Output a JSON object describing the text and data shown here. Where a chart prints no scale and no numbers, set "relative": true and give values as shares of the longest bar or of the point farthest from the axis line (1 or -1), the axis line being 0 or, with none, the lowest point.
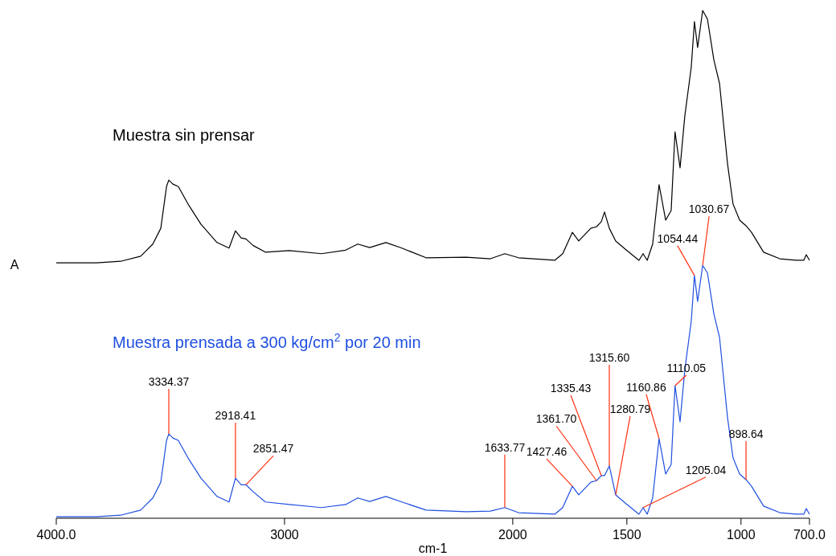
{
  "chart_data": {
    "type": "line",
    "relative": true,
    "xlabel": "cm-1",
    "ylabel": "A",
    "xlim": [
      4000,
      700
    ],
    "xticks": [
      {
        "value": 4000,
        "label": "4000.0"
      },
      3000,
      2000,
      1500,
      1000,
      {
        "value": 700,
        "label": "700.0"
      }
    ],
    "series": [
      {
        "name": "Muestra sin prensar",
        "color": "#000000",
        "x": [
          4000,
          3824,
          3718,
          3630,
          3577,
          3542,
          3517,
          3507,
          3489,
          3465,
          3419,
          3366,
          3296,
          3243,
          3215,
          3190,
          3169,
          3137,
          3084,
          2979,
          2838,
          2732,
          2679,
          2627,
          2556,
          2486,
          2380,
          2204,
          2098,
          2035,
          1975,
          1816,
          1781,
          1739,
          1711,
          1658,
          1633,
          1612,
          1598,
          1577,
          1549,
          1499,
          1447,
          1429,
          1411,
          1387,
          1359,
          1330,
          1306,
          1289,
          1267,
          1246,
          1218,
          1204,
          1190,
          1168,
          1147,
          1119,
          1094,
          1059,
          1035,
          1006,
          978,
          954,
          901,
          830,
          760,
          725,
          714,
          700
        ],
        "values": [
          0.503,
          0.503,
          0.506,
          0.516,
          0.54,
          0.571,
          0.653,
          0.666,
          0.658,
          0.653,
          0.616,
          0.579,
          0.543,
          0.532,
          0.566,
          0.552,
          0.55,
          0.537,
          0.524,
          0.527,
          0.521,
          0.528,
          0.54,
          0.533,
          0.543,
          0.532,
          0.513,
          0.514,
          0.511,
          0.521,
          0.513,
          0.508,
          0.521,
          0.563,
          0.546,
          0.571,
          0.574,
          0.584,
          0.603,
          0.571,
          0.546,
          0.527,
          0.508,
          0.521,
          0.508,
          0.54,
          0.657,
          0.587,
          0.606,
          0.761,
          0.69,
          0.793,
          0.888,
          0.978,
          0.927,
          1.0,
          0.983,
          0.903,
          0.856,
          0.698,
          0.619,
          0.587,
          0.576,
          0.563,
          0.524,
          0.511,
          0.508,
          0.508,
          0.519,
          0.508
        ]
      },
      {
        "name": "Muestra prensada a 300 kg/cm$^{2}$ por 20 min",
        "color": "#1f4fe0",
        "x": [
          4000,
          3824,
          3718,
          3630,
          3577,
          3542,
          3517,
          3507,
          3489,
          3465,
          3419,
          3366,
          3296,
          3243,
          3215,
          3190,
          3169,
          3137,
          3084,
          2979,
          2838,
          2732,
          2679,
          2627,
          2556,
          2486,
          2380,
          2204,
          2098,
          2035,
          1975,
          1816,
          1781,
          1739,
          1711,
          1658,
          1633,
          1612,
          1598,
          1577,
          1549,
          1499,
          1447,
          1429,
          1411,
          1387,
          1359,
          1330,
          1306,
          1289,
          1267,
          1246,
          1218,
          1204,
          1190,
          1168,
          1147,
          1119,
          1094,
          1059,
          1035,
          1006,
          978,
          954,
          901,
          830,
          760,
          725,
          714,
          700
        ],
        "values": [
          0.003,
          0.003,
          0.006,
          0.016,
          0.04,
          0.071,
          0.153,
          0.166,
          0.158,
          0.153,
          0.116,
          0.079,
          0.043,
          0.032,
          0.079,
          0.066,
          0.066,
          0.052,
          0.032,
          0.027,
          0.021,
          0.027,
          0.04,
          0.033,
          0.043,
          0.032,
          0.016,
          0.013,
          0.014,
          0.021,
          0.011,
          0.008,
          0.021,
          0.063,
          0.046,
          0.071,
          0.074,
          0.084,
          0.084,
          0.103,
          0.046,
          0.027,
          0.008,
          0.021,
          0.008,
          0.04,
          0.157,
          0.087,
          0.106,
          0.261,
          0.19,
          0.293,
          0.388,
          0.478,
          0.427,
          0.498,
          0.483,
          0.403,
          0.356,
          0.198,
          0.119,
          0.087,
          0.076,
          0.063,
          0.024,
          0.011,
          0.008,
          0.008,
          0.019,
          0.008
        ]
      }
    ],
    "annotations": [
      {
        "text": "3334.37",
        "x": 3507,
        "y": 0.166
      },
      {
        "text": "2918.41",
        "x": 3215,
        "y": 0.079
      },
      {
        "text": "2851.47",
        "x": 3169,
        "y": 0.066
      },
      {
        "text": "1633.77",
        "x": 2035,
        "y": 0.021
      },
      {
        "text": "1427.46",
        "x": 1739,
        "y": 0.063
      },
      {
        "text": "1361.70",
        "x": 1633,
        "y": 0.074
      },
      {
        "text": "1335.43",
        "x": 1612,
        "y": 0.084
      },
      {
        "text": "1315.60",
        "x": 1577,
        "y": 0.103
      },
      {
        "text": "1280.79",
        "x": 1549,
        "y": 0.046
      },
      {
        "text": "1205.04",
        "x": 1429,
        "y": 0.021
      },
      {
        "text": "1160.86",
        "x": 1359,
        "y": 0.157
      },
      {
        "text": "1110.05",
        "x": 1289,
        "y": 0.261
      },
      {
        "text": "1054.44",
        "x": 1204,
        "y": 0.478
      },
      {
        "text": "1030.67",
        "x": 1168,
        "y": 0.498
      },
      {
        "text": "898.64",
        "x": 978,
        "y": 0.076
      }
    ]
  }
}
